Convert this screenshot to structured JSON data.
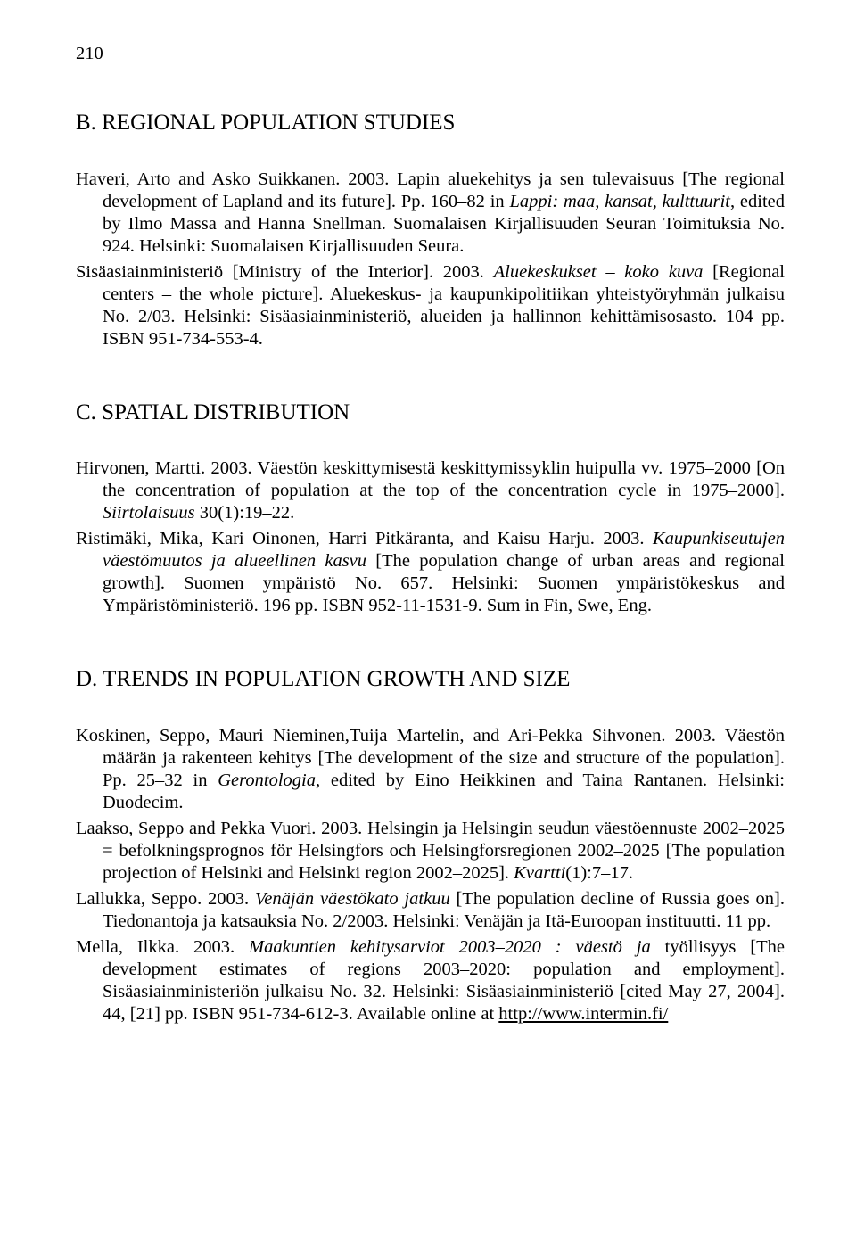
{
  "page_number": "210",
  "sections": [
    {
      "heading": "B. REGIONAL POPULATION STUDIES",
      "entries": [
        {
          "parts": [
            {
              "t": "Haveri, Arto and Asko Suikkanen. 2003. Lapin aluekehitys ja sen tulevaisuus [The regional development of Lapland and its future]. Pp. 160–82 in "
            },
            {
              "t": "Lappi: maa, kansat, kulttuurit",
              "i": true
            },
            {
              "t": ", edited by Ilmo Massa and Hanna Snellman. Suomalaisen Kirjallisuuden Seuran Toimituksia No. 924. Helsinki: Suomalaisen Kirjallisuuden Seura."
            }
          ]
        },
        {
          "parts": [
            {
              "t": "Sisäasiainministeriö [Ministry of the Interior]. 2003. "
            },
            {
              "t": "Aluekeskukset – koko kuva",
              "i": true
            },
            {
              "t": " [Regional centers – the whole picture]. Aluekeskus- ja kaupunkipolitiikan yhteistyöryhmän julkaisu No. 2/03. Helsinki: Sisäasiainministeriö, alueiden ja hallinnon kehittämisosasto. 104 pp. ISBN 951-734-553-4."
            }
          ]
        }
      ]
    },
    {
      "heading": "C. SPATIAL DISTRIBUTION",
      "entries": [
        {
          "parts": [
            {
              "t": "Hirvonen, Martti. 2003. Väestön keskittymisestä keskittymissyklin huipulla vv. 1975–2000 [On the concentration of population at the top of the concentration cycle in 1975–2000]. "
            },
            {
              "t": "Siirtolaisuus",
              "i": true
            },
            {
              "t": " 30(1):19–22."
            }
          ]
        },
        {
          "parts": [
            {
              "t": "Ristimäki, Mika, Kari Oinonen, Harri Pitkäranta, and Kaisu Harju. 2003. "
            },
            {
              "t": "Kaupunkiseutujen väestömuutos ja alueellinen kasvu",
              "i": true
            },
            {
              "t": " [The population change of urban areas and regional growth]. Suomen ympäristö No. 657. Helsinki: Suomen ympäristökeskus and Ympäristöministeriö. 196 pp. ISBN 952-11-1531-9. Sum in Fin, Swe, Eng."
            }
          ]
        }
      ]
    },
    {
      "heading": "D. TRENDS IN POPULATION GROWTH AND SIZE",
      "entries": [
        {
          "parts": [
            {
              "t": "Koskinen, Seppo, Mauri Nieminen,Tuija Martelin, and Ari-Pekka Sihvonen. 2003. Väestön määrän ja rakenteen kehitys [The development of the size and structure of the population]. Pp. 25–32 in "
            },
            {
              "t": "Gerontologia",
              "i": true
            },
            {
              "t": ", edited by Eino Heikkinen and Taina Rantanen. Helsinki: Duodecim."
            }
          ]
        },
        {
          "parts": [
            {
              "t": "Laakso, Seppo and Pekka Vuori. 2003. Helsingin ja Helsingin seudun väestöennuste 2002–2025 = befolkningsprognos för Helsingfors och Helsingforsregionen 2002–2025 [The population projection of Helsinki and Helsinki region 2002–2025]. "
            },
            {
              "t": "Kvartti",
              "i": true
            },
            {
              "t": "(1):7–17."
            }
          ]
        },
        {
          "parts": [
            {
              "t": "Lallukka, Seppo. 2003. "
            },
            {
              "t": "Venäjän väestökato jatkuu",
              "i": true
            },
            {
              "t": " [The population decline of Russia goes on]. Tiedonantoja ja katsauksia No. 2/2003. Helsinki: Venäjän ja Itä-Euroopan instituutti. 11 pp."
            }
          ]
        },
        {
          "parts": [
            {
              "t": "Mella, Ilkka. 2003. "
            },
            {
              "t": "Maakuntien kehitysarviot 2003–2020 : väestö ja ",
              "i": true
            },
            {
              "t": "työllisyys [The development estimates of regions 2003–2020: population and employment]. Sisäasiainministeriön julkaisu No. 32. Helsinki: Sisäasiainministeriö [cited May 27, 2004]. 44, [21] pp. ISBN 951-734-612-3. Available online at "
            },
            {
              "t": "http://www.intermin.fi/",
              "u": true
            }
          ]
        }
      ]
    }
  ]
}
